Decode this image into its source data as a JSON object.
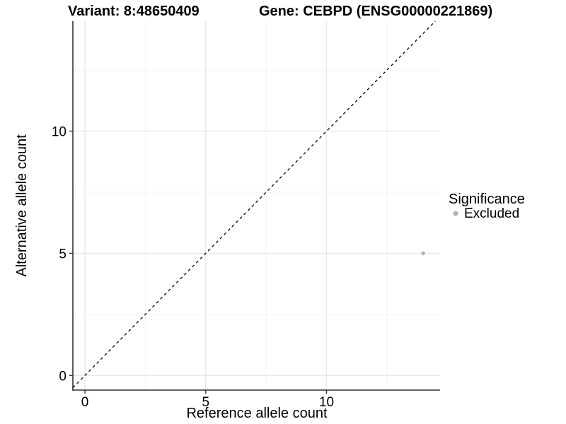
{
  "titles": {
    "variant": "Variant: 8:48650409",
    "gene": "Gene: CEBPD (ENSG00000221869)"
  },
  "chart_data": {
    "type": "scatter",
    "xlabel": "Reference allele count",
    "ylabel": "Alternative allele count",
    "xlim": [
      -0.5,
      14.7
    ],
    "ylim": [
      -0.6,
      14.5
    ],
    "x_ticks": [
      0,
      5,
      10
    ],
    "y_ticks": [
      0,
      5,
      10
    ],
    "x_minor_ticks": [
      2.5,
      7.5,
      12.5
    ],
    "y_minor_ticks": [
      2.5,
      7.5,
      12.5
    ],
    "grid": "on",
    "points": [
      {
        "x": 14,
        "y": 5,
        "series": "Excluded"
      }
    ],
    "reference_line": {
      "kind": "identity",
      "equation": "y = x",
      "style": "dashed",
      "color": "#000000"
    },
    "legend": {
      "title": "Significance",
      "position": "right",
      "items": [
        {
          "label": "Excluded",
          "color": "#b3b3b3"
        }
      ]
    }
  },
  "colors": {
    "background": "#ffffff",
    "axis_line": "#333333",
    "tick_mark": "#333333",
    "grid_major": "#e8e8e8",
    "grid_minor": "#f3f3f3",
    "text": "#000000",
    "point": "#b3b3b3"
  }
}
